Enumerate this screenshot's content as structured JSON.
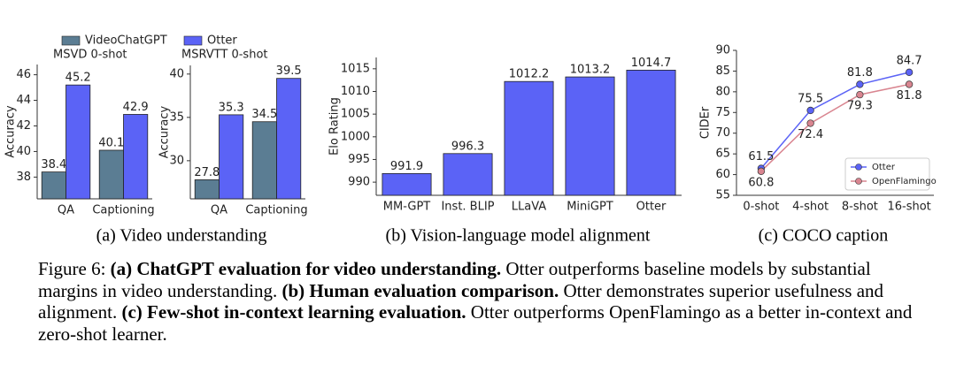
{
  "chart_data": [
    {
      "type": "bar",
      "title": "MSVD 0-shot",
      "ylabel": "Accuracy",
      "legend": "top",
      "categories": [
        "QA",
        "Captioning"
      ],
      "series": [
        {
          "name": "VideoChatGPT",
          "color": "#5b7d93",
          "values": [
            38.4,
            40.1
          ]
        },
        {
          "name": "Otter",
          "color": "#5b63f6",
          "values": [
            45.2,
            42.9
          ]
        }
      ],
      "ylim": [
        36.3,
        46.8
      ],
      "yticks": [
        38,
        40,
        42,
        44,
        46
      ]
    },
    {
      "type": "bar",
      "title": "MSRVTT 0-shot",
      "ylabel": "Accuracy",
      "categories": [
        "QA",
        "Captioning"
      ],
      "series": [
        {
          "color": "#5b7d93",
          "values": [
            27.8,
            34.5
          ]
        },
        {
          "color": "#5b63f6",
          "values": [
            35.3,
            39.5
          ]
        }
      ],
      "ylim": [
        25.6,
        41
      ],
      "yticks": [
        30,
        35,
        40
      ]
    },
    {
      "type": "bar",
      "ylabel": "Elo Rating",
      "categories": [
        "MM-GPT",
        "Inst. BLIP",
        "LLaVA",
        "MiniGPT",
        "Otter"
      ],
      "series": [
        {
          "color": "#5b63f6",
          "values": [
            991.9,
            996.3,
            1012.2,
            1013.2,
            1014.7
          ]
        }
      ],
      "ylim": [
        987.1,
        1017.5
      ],
      "yticks": [
        990,
        995,
        1000,
        1005,
        1010,
        1015
      ]
    },
    {
      "type": "line",
      "ylabel": "CIDEr",
      "legend": "lower right",
      "categories": [
        "0-shot",
        "4-shot",
        "8-shot",
        "16-shot"
      ],
      "series": [
        {
          "name": "Otter",
          "color": "#5b63f6",
          "label_position": "above",
          "values": [
            61.5,
            75.5,
            81.8,
            84.7
          ]
        },
        {
          "name": "OpenFlamingo",
          "color": "#d98590",
          "label_position": "below",
          "values": [
            60.8,
            72.4,
            79.3,
            81.8
          ]
        }
      ],
      "ylim": [
        55,
        90
      ],
      "yticks": [
        55,
        60,
        65,
        70,
        75,
        80,
        85,
        90
      ]
    }
  ],
  "figure": {
    "subcaptions": [
      "(a) Video understanding",
      "(b) Vision-language model alignment",
      "(c) COCO caption"
    ],
    "caption": [
      {
        "text": "Figure 6:"
      },
      {
        "text": "(a) ChatGPT evaluation for video understanding.",
        "bold": true
      },
      {
        "text": "Otter outperforms baseline models by substantial margins in video understanding."
      },
      {
        "text": "(b) Human evaluation comparison.",
        "bold": true
      },
      {
        "text": "Otter demonstrates superior usefulness and alignment."
      },
      {
        "text": "(c) Few-shot in-context learning evaluation.",
        "bold": true
      },
      {
        "text": "Otter outperforms OpenFlamingo as a better in-context and zero-shot learner."
      }
    ]
  }
}
